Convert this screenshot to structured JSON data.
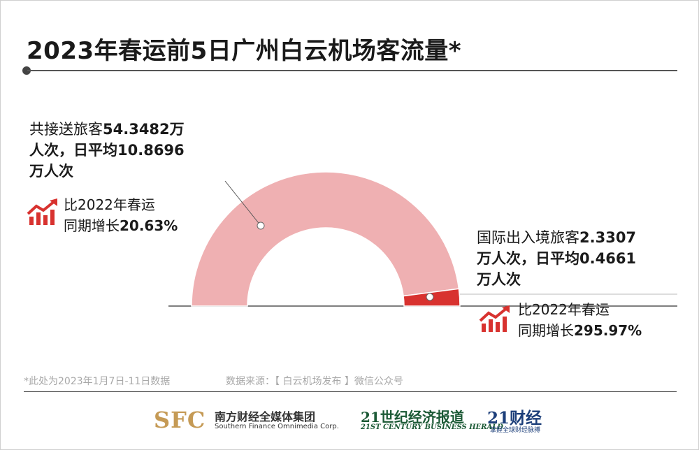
{
  "title": "2023年春运前5日广州白云机场客流量*",
  "total_block": {
    "line1_prefix": "共接送旅客",
    "line1_value": "54.3482万",
    "line2_unit": "人次，日平均",
    "line2_value": "10.8696",
    "line3_unit": "万人次",
    "growth_line1": "比2022年春运",
    "growth_prefix": "同期增长",
    "growth_value": "20.63%"
  },
  "intl_block": {
    "line1_prefix": "国际出入境旅客",
    "line1_value": "2.3307",
    "line2_unit": "万人次，日平均",
    "line2_value": "0.4661",
    "line3_unit": "万人次",
    "growth_line1": "比2022年春运",
    "growth_prefix": "同期增长",
    "growth_value": "295.97%"
  },
  "footnote": "*此处为2023年1月7日-11日数据",
  "source": "数据来源：【 白云机场发布 】微信公众号",
  "logos": {
    "sfc_mark": "SFC",
    "sfc_cn": "南方财经全媒体集团",
    "sfc_en": "Southern Finance Omnimedia Corp.",
    "c21_cn": "21世纪经济报道",
    "c21_en": "21ST CENTURY BUSINESS HERALD",
    "cai21_cn": "21财经",
    "cai21_tag": "掌握全球财经脉搏"
  },
  "colors": {
    "total_segment": "#efb0b2",
    "intl_segment": "#d8322f",
    "icon_red": "#d8322f"
  },
  "chart_data": {
    "type": "pie",
    "subtype": "half-donut",
    "unit": "万人次",
    "values": [
      54.3482,
      2.3307
    ],
    "daily_average": [
      10.8696,
      0.4661
    ],
    "growth_vs_2022": [
      "20.63%",
      "295.97%"
    ]
  }
}
